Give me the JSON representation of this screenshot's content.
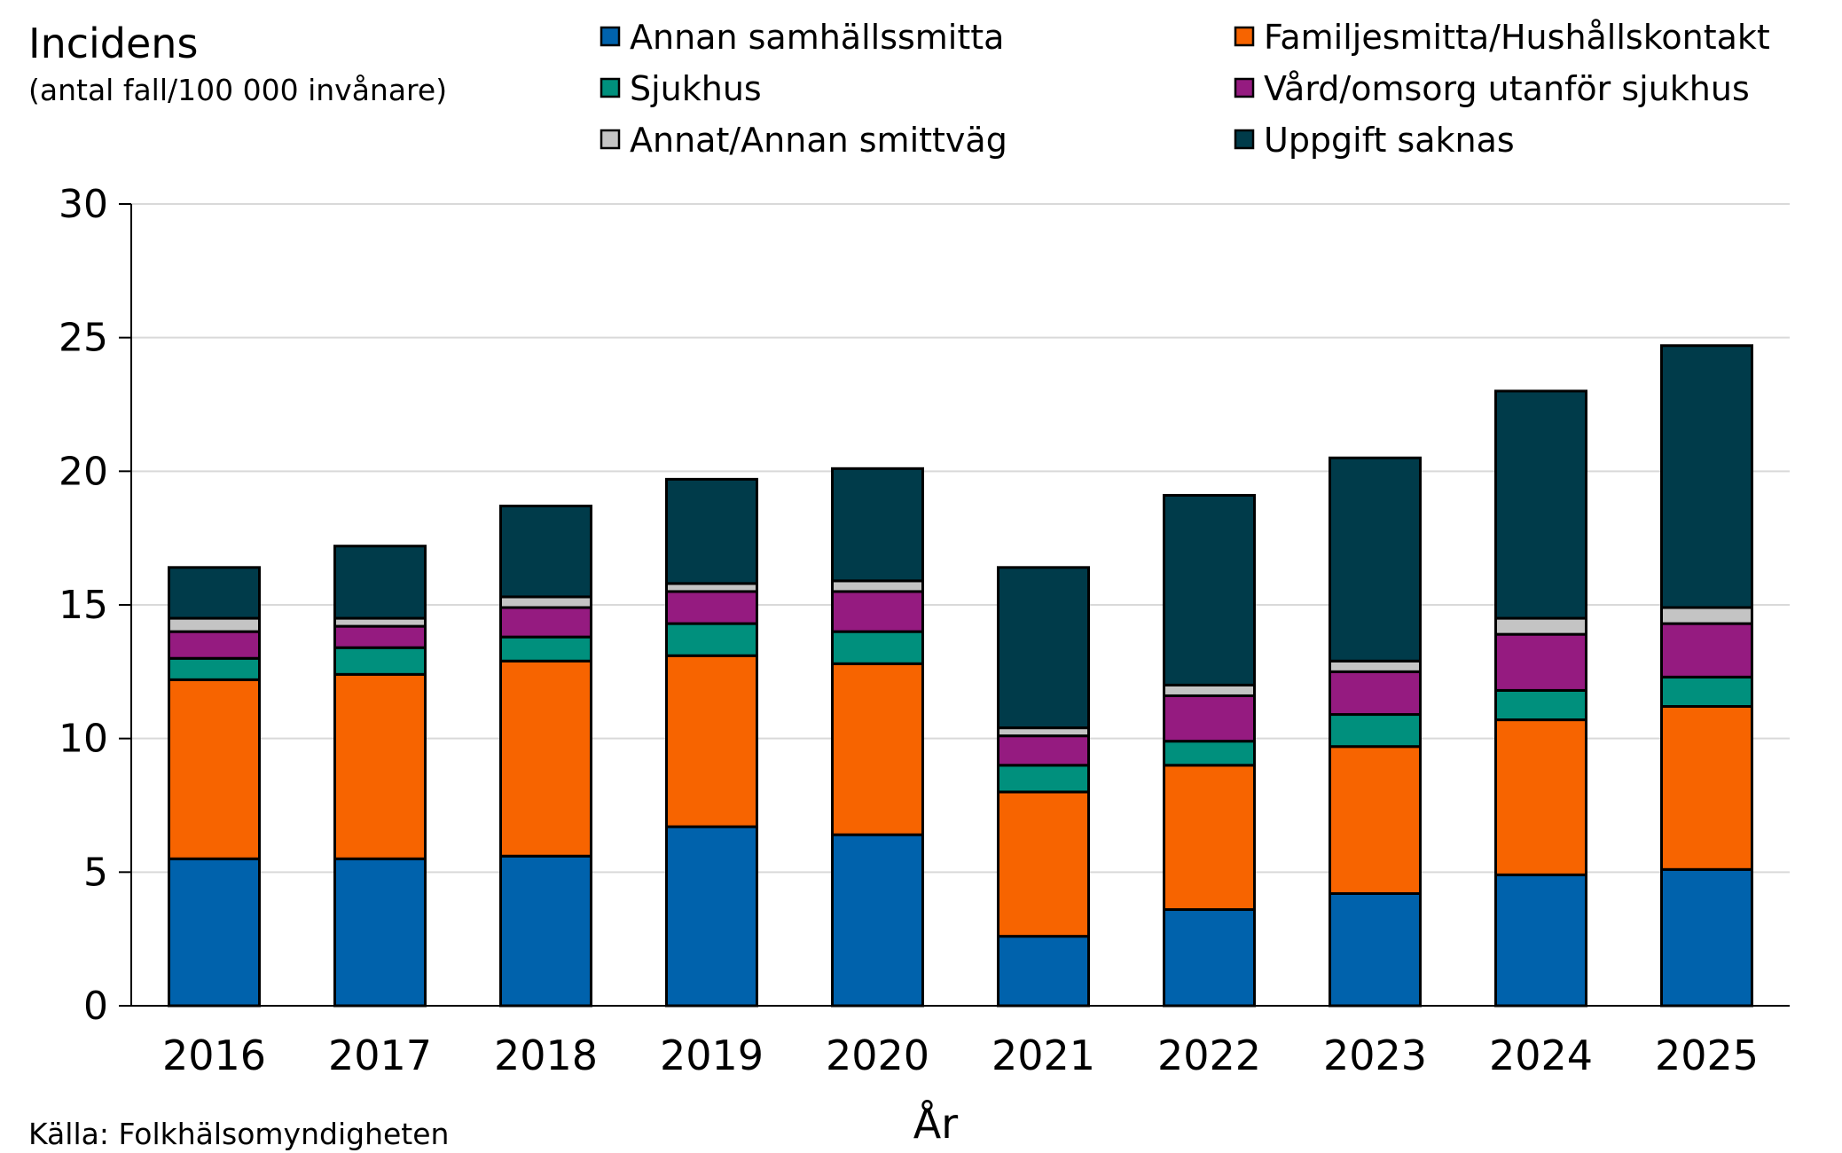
{
  "chart_data": {
    "type": "bar",
    "stacked": true,
    "title": "",
    "ylabel": "Incidens",
    "ylabel_sub": "(antal fall/100 000 invånare)",
    "xlabel": "År",
    "source": "Källa: Folkhälsomyndigheten",
    "ylim": [
      0,
      30
    ],
    "yticks": [
      0,
      5,
      10,
      15,
      20,
      25,
      30
    ],
    "grid": "horizontal",
    "legend_position": "top",
    "categories": [
      "2016",
      "2017",
      "2018",
      "2019",
      "2020",
      "2021",
      "2022",
      "2023",
      "2024",
      "2025"
    ],
    "series": [
      {
        "name": "Annan samhällssmitta",
        "color": "#0062ac",
        "values": [
          5.5,
          5.5,
          5.6,
          6.7,
          6.4,
          2.6,
          3.6,
          4.2,
          4.9,
          5.1
        ]
      },
      {
        "name": "Familjesmitta/Hushållskontakt",
        "color": "#f76400",
        "values": [
          6.7,
          6.9,
          7.3,
          6.4,
          6.4,
          5.4,
          5.4,
          5.5,
          5.8,
          6.1
        ]
      },
      {
        "name": "Sjukhus",
        "color": "#00907d",
        "values": [
          0.8,
          1.0,
          0.9,
          1.2,
          1.2,
          1.0,
          0.9,
          1.2,
          1.1,
          1.1
        ]
      },
      {
        "name": "Vård/omsorg utanför sjukhus",
        "color": "#951b80",
        "values": [
          1.0,
          0.8,
          1.1,
          1.2,
          1.5,
          1.1,
          1.7,
          1.6,
          2.1,
          2.0
        ]
      },
      {
        "name": "Annat/Annan smittväg",
        "color": "#c4c4c4",
        "values": [
          0.5,
          0.3,
          0.4,
          0.3,
          0.4,
          0.3,
          0.4,
          0.4,
          0.6,
          0.6
        ]
      },
      {
        "name": "Uppgift saknas",
        "color": "#003b4a",
        "values": [
          1.9,
          2.7,
          3.4,
          3.9,
          4.2,
          6.0,
          7.1,
          7.6,
          8.5,
          9.8
        ]
      }
    ]
  }
}
